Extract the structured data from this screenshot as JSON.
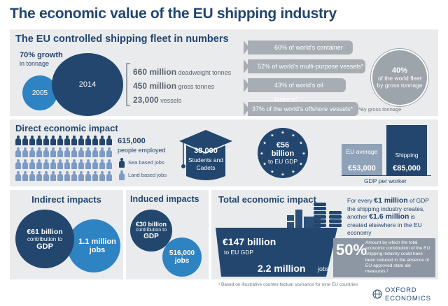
{
  "page": {
    "title": "The economic value of the EU shipping industry"
  },
  "fleet": {
    "heading": "The EU controlled shipping fleet in numbers",
    "growth_value": "70% growth",
    "growth_label": "in tonnage",
    "year_small": "2005",
    "year_large": "2014",
    "stats": [
      {
        "value": "660 million",
        "unit": "deadweight tonnes"
      },
      {
        "value": "450 million",
        "unit": "gross tonnes"
      },
      {
        "value": "23,000",
        "unit": "vessels"
      }
    ],
    "ships": [
      "60% of world's container ships*",
      "52% of world's multi-purpose vessels*",
      "43% of world's oil tankers*",
      "37% of the world's offshore vessels*"
    ],
    "world_circle": {
      "value": "40%",
      "label": "of the world fleet by gross tonnage"
    },
    "footnote": "*By gross tonnage"
  },
  "direct": {
    "heading": "Direct economic impact",
    "people_value": "615,000",
    "people_label": "people employed",
    "legend_sea": "Sea based jobs",
    "legend_land": "Land based jobs",
    "students_value": "38,000",
    "students_label": "Students and Cadets",
    "gdp_value": "€56 billion",
    "gdp_label": "to EU GDP",
    "worker_eu_label": "EU average",
    "worker_eu_value": "€53,000",
    "worker_ship_label": "Shipping",
    "worker_ship_value": "€85,000",
    "worker_caption": "GDP per worker",
    "worker_values": [
      53000,
      85000
    ]
  },
  "indirect": {
    "heading": "Indirect impacts",
    "gdp_value": "€61 billion",
    "gdp_mid": "contribution to",
    "gdp_label": "GDP",
    "jobs_value": "1.1 million",
    "jobs_label": "jobs"
  },
  "induced": {
    "heading": "Induced impacts",
    "gdp_value": "€30 billion",
    "gdp_mid": "contribution to",
    "gdp_label": "GDP",
    "jobs_value": "516,000",
    "jobs_label": "jobs"
  },
  "total": {
    "heading": "Total economic impact",
    "gdp_value": "€147 billion",
    "gdp_label": "to EU GDP",
    "jobs_value": "2.2 million",
    "jobs_label": "jobs",
    "million_text_a": "For every",
    "million_value_a": "€1 million",
    "million_text_b": "of GDP the shipping industry creates, another",
    "million_value_b": "€1.6 million",
    "million_text_c": "is created elsewhere in the EU economy",
    "pct_value": "50%",
    "pct_text": "Amount by which the total economic contribution of the EU shipping industry could have been reduced in the absence of EU-approved state aid measures.¹"
  },
  "footer": {
    "note": "¹ Based on illustrative counter-factual scenarios for nine EU countries",
    "brand_line1": "OXFORD",
    "brand_line2": "ECONOMICS"
  }
}
